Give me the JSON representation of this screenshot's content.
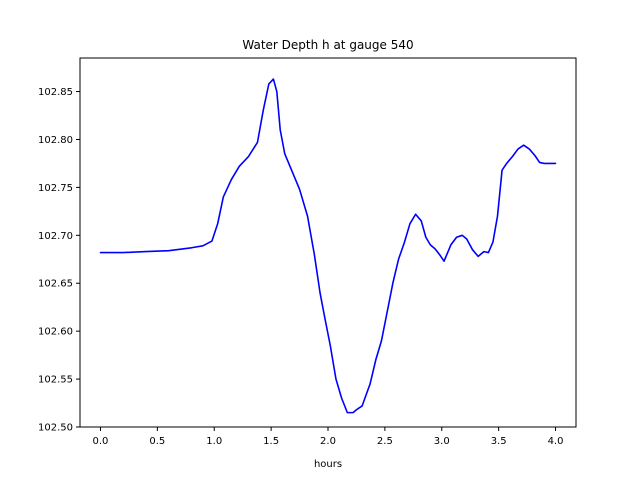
{
  "chart_data": {
    "type": "line",
    "title": "Water Depth h at gauge 540",
    "xlabel": "hours",
    "ylabel": "",
    "xlim": [
      -0.18,
      4.18
    ],
    "ylim": [
      102.5,
      102.885
    ],
    "xticks": [
      0.0,
      0.5,
      1.0,
      1.5,
      2.0,
      2.5,
      3.0,
      3.5,
      4.0
    ],
    "xtick_labels": [
      "0.0",
      "0.5",
      "1.0",
      "1.5",
      "2.0",
      "2.5",
      "3.0",
      "3.5",
      "4.0"
    ],
    "yticks": [
      102.5,
      102.55,
      102.6,
      102.65,
      102.7,
      102.75,
      102.8,
      102.85
    ],
    "ytick_labels": [
      "102.50",
      "102.55",
      "102.60",
      "102.65",
      "102.70",
      "102.75",
      "102.80",
      "102.85"
    ],
    "grid": false,
    "series": [
      {
        "color": "#0000ff",
        "x": [
          0.0,
          0.2,
          0.4,
          0.6,
          0.8,
          0.9,
          0.98,
          1.03,
          1.08,
          1.15,
          1.22,
          1.3,
          1.38,
          1.43,
          1.48,
          1.52,
          1.55,
          1.58,
          1.62,
          1.68,
          1.75,
          1.82,
          1.88,
          1.93,
          1.97,
          2.02,
          2.07,
          2.12,
          2.17,
          2.22,
          2.25,
          2.3,
          2.37,
          2.42,
          2.47,
          2.52,
          2.57,
          2.62,
          2.67,
          2.72,
          2.77,
          2.82,
          2.86,
          2.9,
          2.94,
          2.98,
          3.02,
          3.08,
          3.13,
          3.18,
          3.22,
          3.27,
          3.32,
          3.37,
          3.41,
          3.45,
          3.49,
          3.53,
          3.57,
          3.62,
          3.67,
          3.72,
          3.77,
          3.82,
          3.86,
          3.9,
          3.93,
          3.96,
          4.0
        ],
        "y": [
          102.682,
          102.682,
          102.683,
          102.684,
          102.687,
          102.689,
          102.694,
          102.712,
          102.74,
          102.758,
          102.772,
          102.782,
          102.797,
          102.83,
          102.858,
          102.863,
          102.85,
          102.81,
          102.785,
          102.768,
          102.748,
          102.72,
          102.68,
          102.64,
          102.615,
          102.585,
          102.55,
          102.53,
          102.515,
          102.515,
          102.518,
          102.522,
          102.545,
          102.57,
          102.59,
          102.62,
          102.65,
          102.675,
          102.692,
          102.712,
          102.722,
          102.715,
          102.698,
          102.69,
          102.686,
          102.68,
          102.673,
          102.69,
          102.698,
          102.7,
          102.696,
          102.685,
          102.678,
          102.683,
          102.682,
          102.693,
          102.72,
          102.768,
          102.775,
          102.782,
          102.79,
          102.794,
          102.79,
          102.783,
          102.776,
          102.775,
          102.775,
          102.775,
          102.775
        ]
      }
    ]
  }
}
